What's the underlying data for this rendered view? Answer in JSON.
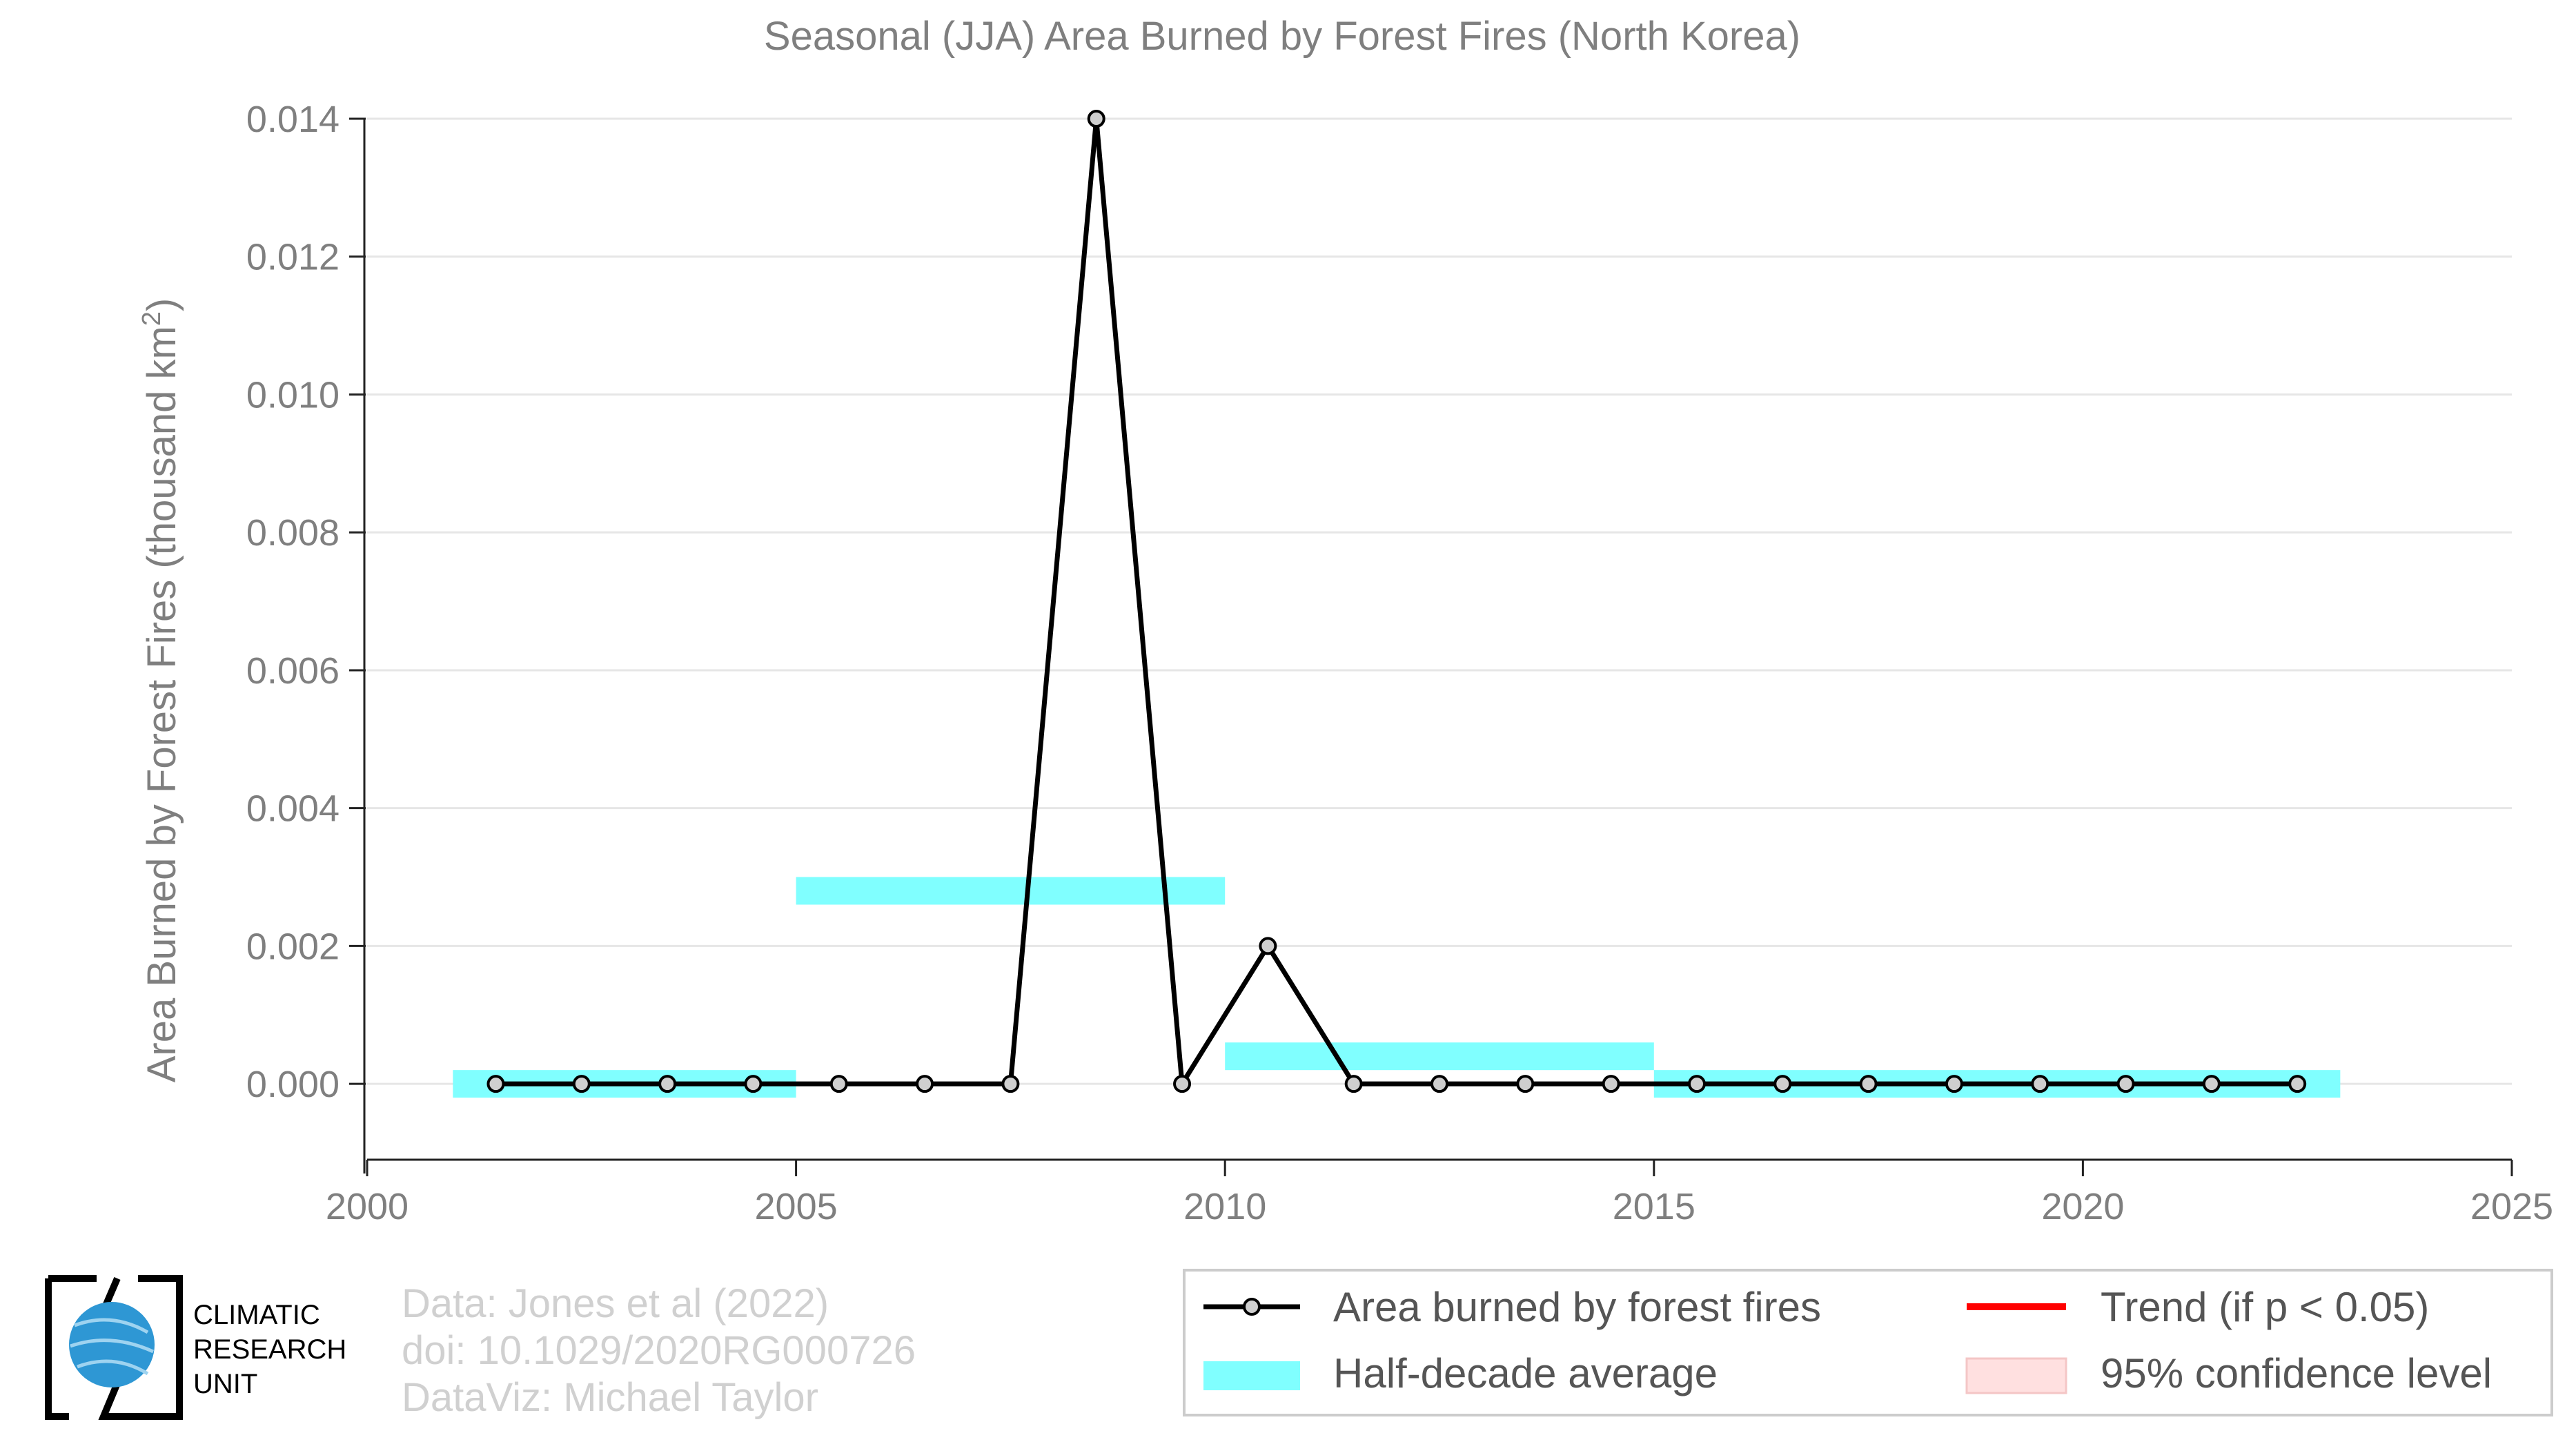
{
  "chart_data": {
    "type": "line",
    "title": "Seasonal (JJA) Area Burned by Forest Fires (North Korea)",
    "xlabel": "",
    "ylabel_main": "Area Burned by Forest Fires (thousand km",
    "ylabel_sup": "2",
    "ylabel_end": ")",
    "xlim": [
      2000,
      2025
    ],
    "ylim": [
      -0.0011,
      0.014
    ],
    "xticks": [
      "2000",
      "2005",
      "2010",
      "2015",
      "2020",
      "2025"
    ],
    "yticks": [
      "0.000",
      "0.002",
      "0.004",
      "0.006",
      "0.008",
      "0.010",
      "0.012",
      "0.014"
    ],
    "grid": "horizontal",
    "series": [
      {
        "name": "Area burned by forest fires",
        "color": "#000000",
        "x": [
          2001.5,
          2002.5,
          2003.5,
          2004.5,
          2005.5,
          2006.5,
          2007.5,
          2008.5,
          2009.5,
          2010.5,
          2011.5,
          2012.5,
          2013.5,
          2014.5,
          2015.5,
          2016.5,
          2017.5,
          2018.5,
          2019.5,
          2020.5,
          2021.5,
          2022.5
        ],
        "values": [
          0,
          0,
          0,
          0,
          0,
          0,
          0,
          0.014,
          0,
          0.002,
          0,
          0,
          0,
          0,
          0,
          0,
          0,
          0,
          0,
          0,
          0,
          0
        ]
      }
    ],
    "half_decade_average": {
      "name": "Half-decade average",
      "color": "#80ffff",
      "segments": [
        {
          "start": 2001,
          "end": 2005,
          "value": 0.0
        },
        {
          "start": 2005,
          "end": 2010,
          "value": 0.0028
        },
        {
          "start": 2010,
          "end": 2015,
          "value": 0.0004
        },
        {
          "start": 2015,
          "end": 2023,
          "value": 0.0
        }
      ]
    },
    "legend": {
      "placement": "bottom-right",
      "entries": [
        {
          "label": "Area burned by forest fires",
          "color": "#000000"
        },
        {
          "label": "Half-decade average",
          "color": "#80ffff"
        },
        {
          "label": "Trend (if p < 0.05)",
          "color": "#ff0000"
        },
        {
          "label": "95% confidence level",
          "color": "#ffe0e0"
        }
      ]
    }
  },
  "credits": {
    "line1": "Data: Jones et al (2022)",
    "line2": "doi: 10.1029/2020RG000726",
    "line3": "DataViz: Michael Taylor"
  },
  "logo": {
    "line1": "CLIMATIC",
    "line2": "RESEARCH",
    "line3": "UNIT"
  }
}
